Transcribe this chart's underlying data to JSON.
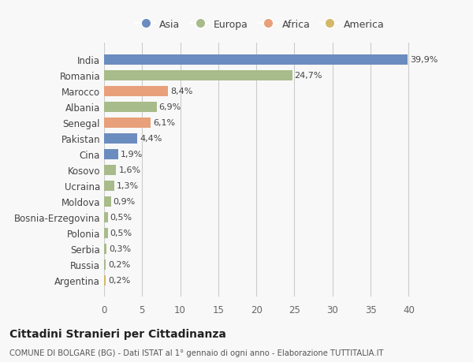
{
  "countries": [
    "India",
    "Romania",
    "Marocco",
    "Albania",
    "Senegal",
    "Pakistan",
    "Cina",
    "Kosovo",
    "Ucraina",
    "Moldova",
    "Bosnia-Erzegovina",
    "Polonia",
    "Serbia",
    "Russia",
    "Argentina"
  ],
  "values": [
    39.9,
    24.7,
    8.4,
    6.9,
    6.1,
    4.4,
    1.9,
    1.6,
    1.3,
    0.9,
    0.5,
    0.5,
    0.3,
    0.2,
    0.2
  ],
  "labels": [
    "39,9%",
    "24,7%",
    "8,4%",
    "6,9%",
    "6,1%",
    "4,4%",
    "1,9%",
    "1,6%",
    "1,3%",
    "0,9%",
    "0,5%",
    "0,5%",
    "0,3%",
    "0,2%",
    "0,2%"
  ],
  "colors": [
    "#6b8cbf",
    "#a8bb8a",
    "#e8a07a",
    "#a8bb8a",
    "#e8a07a",
    "#6b8cbf",
    "#6b8cbf",
    "#a8bb8a",
    "#a8bb8a",
    "#a8bb8a",
    "#a8bb8a",
    "#a8bb8a",
    "#a8bb8a",
    "#a8bb8a",
    "#d4b86a"
  ],
  "legend_labels": [
    "Asia",
    "Europa",
    "Africa",
    "America"
  ],
  "legend_colors": [
    "#6b8cbf",
    "#a8bb8a",
    "#e8a07a",
    "#d4b86a"
  ],
  "title": "Cittadini Stranieri per Cittadinanza",
  "subtitle": "COMUNE DI BOLGARE (BG) - Dati ISTAT al 1° gennaio di ogni anno - Elaborazione TUTTITALIA.IT",
  "xlim": [
    0,
    41
  ],
  "xticks": [
    0,
    5,
    10,
    15,
    20,
    25,
    30,
    35,
    40
  ],
  "background_color": "#f8f8f8",
  "bar_height": 0.65,
  "grid_color": "#cccccc"
}
